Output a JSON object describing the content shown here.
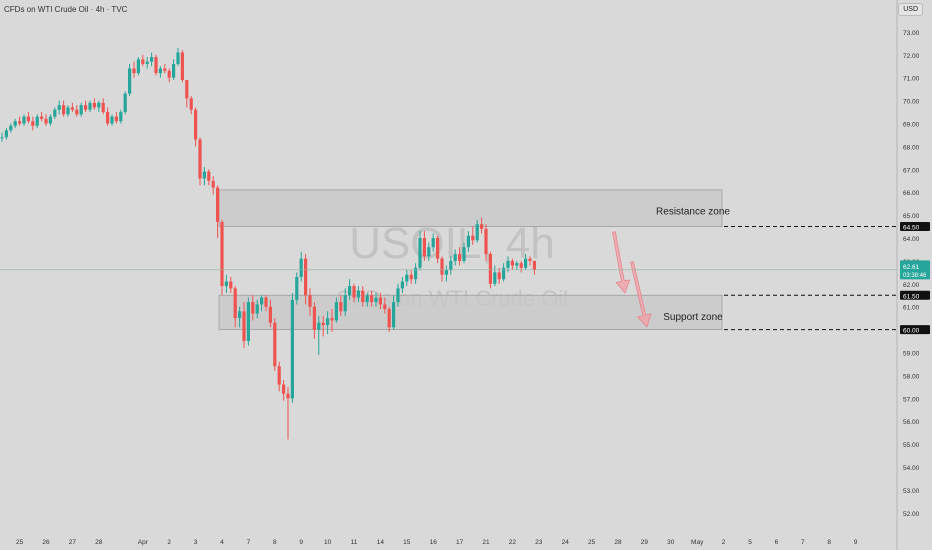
{
  "header": {
    "symbol_line": "CFDs on WTI Crude Oil · 4h · TVC"
  },
  "currency_button": "USD",
  "watermark": {
    "line1": "USOIL, 4h",
    "line2": "CFDs on WTI Crude Oil"
  },
  "colors": {
    "up": "#26a69a",
    "down": "#ef5350",
    "zone": "#c7c7c7",
    "arrow": "#f0a0a6"
  },
  "chart_data": {
    "type": "candlestick",
    "title": "CFDs on WTI Crude Oil · 4h · TVC",
    "ylim": [
      51.6,
      73.3
    ],
    "y_ticks": [
      "73.00",
      "72.00",
      "71.00",
      "70.00",
      "69.00",
      "68.00",
      "67.00",
      "66.00",
      "65.00",
      "64.00",
      "63.00",
      "62.00",
      "61.00",
      "60.00",
      "59.00",
      "58.00",
      "57.00",
      "56.00",
      "55.00",
      "54.00",
      "53.00",
      "52.00"
    ],
    "x_ticks": [
      {
        "label": "25",
        "i": 4
      },
      {
        "label": "26",
        "i": 10
      },
      {
        "label": "27",
        "i": 16
      },
      {
        "label": "28",
        "i": 22
      },
      {
        "label": "Apr",
        "i": 32
      },
      {
        "label": "2",
        "i": 38
      },
      {
        "label": "3",
        "i": 44
      },
      {
        "label": "4",
        "i": 50
      },
      {
        "label": "7",
        "i": 56
      },
      {
        "label": "8",
        "i": 62
      },
      {
        "label": "9",
        "i": 68
      },
      {
        "label": "10",
        "i": 74
      },
      {
        "label": "11",
        "i": 80
      },
      {
        "label": "14",
        "i": 86
      },
      {
        "label": "15",
        "i": 92
      },
      {
        "label": "16",
        "i": 98
      },
      {
        "label": "17",
        "i": 104
      },
      {
        "label": "21",
        "i": 110
      },
      {
        "label": "22",
        "i": 116
      },
      {
        "label": "23",
        "i": 122
      },
      {
        "label": "24",
        "i": 128
      },
      {
        "label": "25",
        "i": 134
      },
      {
        "label": "28",
        "i": 140
      },
      {
        "label": "29",
        "i": 146
      },
      {
        "label": "30",
        "i": 152
      },
      {
        "label": "May",
        "i": 158
      },
      {
        "label": "2",
        "i": 164
      },
      {
        "label": "5",
        "i": 170
      },
      {
        "label": "6",
        "i": 176
      },
      {
        "label": "7",
        "i": 182
      },
      {
        "label": "8",
        "i": 188
      },
      {
        "label": "9",
        "i": 194
      }
    ],
    "candles": [
      [
        68.4,
        68.6,
        68.2,
        68.4
      ],
      [
        68.4,
        68.8,
        68.3,
        68.7
      ],
      [
        68.7,
        69.0,
        68.6,
        68.9
      ],
      [
        68.9,
        69.2,
        68.8,
        69.1
      ],
      [
        69.1,
        69.3,
        68.9,
        69.0
      ],
      [
        69.0,
        69.4,
        68.9,
        69.3
      ],
      [
        69.3,
        69.5,
        69.0,
        69.1
      ],
      [
        69.1,
        69.3,
        68.7,
        68.9
      ],
      [
        68.9,
        69.4,
        68.8,
        69.3
      ],
      [
        69.3,
        69.5,
        69.1,
        69.2
      ],
      [
        69.2,
        69.4,
        68.9,
        69.0
      ],
      [
        69.0,
        69.4,
        68.9,
        69.3
      ],
      [
        69.3,
        69.7,
        69.2,
        69.6
      ],
      [
        69.6,
        70.0,
        69.4,
        69.8
      ],
      [
        69.8,
        70.0,
        69.3,
        69.4
      ],
      [
        69.4,
        69.8,
        69.3,
        69.7
      ],
      [
        69.7,
        69.9,
        69.5,
        69.6
      ],
      [
        69.6,
        69.8,
        69.3,
        69.4
      ],
      [
        69.4,
        69.9,
        69.3,
        69.8
      ],
      [
        69.8,
        70.0,
        69.5,
        69.6
      ],
      [
        69.6,
        70.0,
        69.5,
        69.9
      ],
      [
        69.9,
        70.1,
        69.6,
        69.7
      ],
      [
        69.7,
        70.0,
        69.5,
        69.9
      ],
      [
        69.9,
        70.1,
        69.4,
        69.5
      ],
      [
        69.5,
        69.7,
        68.9,
        69.0
      ],
      [
        69.0,
        69.4,
        68.9,
        69.3
      ],
      [
        69.3,
        69.5,
        69.0,
        69.1
      ],
      [
        69.1,
        69.6,
        69.0,
        69.5
      ],
      [
        69.5,
        70.4,
        69.4,
        70.3
      ],
      [
        70.3,
        71.6,
        70.2,
        71.4
      ],
      [
        71.4,
        71.7,
        71.0,
        71.2
      ],
      [
        71.2,
        71.9,
        71.1,
        71.8
      ],
      [
        71.8,
        72.0,
        71.5,
        71.6
      ],
      [
        71.6,
        71.9,
        71.4,
        71.7
      ],
      [
        71.7,
        72.1,
        71.5,
        71.9
      ],
      [
        71.9,
        72.0,
        71.1,
        71.2
      ],
      [
        71.2,
        71.5,
        71.0,
        71.4
      ],
      [
        71.4,
        71.6,
        71.2,
        71.3
      ],
      [
        71.3,
        71.4,
        70.8,
        71.0
      ],
      [
        71.0,
        71.8,
        70.9,
        71.6
      ],
      [
        71.6,
        72.3,
        71.5,
        72.1
      ],
      [
        72.1,
        72.2,
        70.8,
        70.9
      ],
      [
        70.9,
        70.9,
        69.7,
        70.1
      ],
      [
        70.1,
        70.2,
        69.4,
        69.6
      ],
      [
        69.6,
        69.7,
        68.0,
        68.3
      ],
      [
        68.3,
        68.4,
        66.3,
        66.6
      ],
      [
        66.6,
        67.1,
        66.3,
        66.9
      ],
      [
        66.9,
        67.0,
        66.3,
        66.5
      ],
      [
        66.5,
        66.7,
        65.9,
        66.2
      ],
      [
        66.2,
        66.3,
        64.0,
        64.7
      ],
      [
        64.7,
        64.8,
        61.5,
        61.9
      ],
      [
        61.9,
        62.4,
        61.6,
        62.1
      ],
      [
        62.1,
        62.3,
        61.6,
        61.8
      ],
      [
        61.8,
        61.9,
        60.1,
        60.5
      ],
      [
        60.5,
        61.0,
        60.1,
        60.8
      ],
      [
        60.8,
        61.2,
        59.2,
        59.5
      ],
      [
        59.5,
        61.4,
        59.3,
        61.2
      ],
      [
        61.2,
        61.5,
        60.4,
        60.7
      ],
      [
        60.7,
        61.3,
        60.5,
        61.1
      ],
      [
        61.1,
        61.5,
        60.8,
        61.4
      ],
      [
        61.4,
        61.5,
        60.8,
        61.0
      ],
      [
        61.0,
        61.3,
        60.1,
        60.3
      ],
      [
        60.3,
        60.5,
        58.2,
        58.4
      ],
      [
        58.4,
        58.6,
        57.3,
        57.6
      ],
      [
        57.6,
        57.8,
        56.9,
        57.2
      ],
      [
        57.2,
        57.5,
        55.2,
        57.0
      ],
      [
        57.0,
        61.6,
        56.8,
        61.3
      ],
      [
        61.3,
        62.5,
        61.1,
        62.3
      ],
      [
        62.3,
        63.4,
        62.1,
        63.1
      ],
      [
        63.1,
        63.3,
        61.1,
        61.5
      ],
      [
        61.5,
        61.8,
        60.6,
        61.0
      ],
      [
        61.0,
        61.2,
        59.6,
        60.0
      ],
      [
        60.0,
        60.6,
        58.9,
        60.3
      ],
      [
        60.3,
        60.6,
        59.7,
        60.2
      ],
      [
        60.2,
        60.8,
        59.8,
        60.5
      ],
      [
        60.5,
        60.9,
        59.9,
        60.4
      ],
      [
        60.4,
        61.4,
        60.3,
        61.2
      ],
      [
        61.2,
        61.5,
        60.6,
        60.8
      ],
      [
        60.8,
        61.8,
        60.6,
        61.5
      ],
      [
        61.5,
        62.2,
        61.3,
        61.9
      ],
      [
        61.9,
        62.0,
        61.2,
        61.4
      ],
      [
        61.4,
        61.9,
        61.2,
        61.7
      ],
      [
        61.7,
        61.9,
        61.0,
        61.2
      ],
      [
        61.2,
        61.6,
        61.0,
        61.5
      ],
      [
        61.5,
        61.7,
        61.0,
        61.2
      ],
      [
        61.2,
        61.6,
        61.0,
        61.4
      ],
      [
        61.4,
        61.6,
        60.9,
        61.1
      ],
      [
        61.1,
        61.4,
        60.7,
        60.9
      ],
      [
        60.9,
        61.0,
        59.9,
        60.1
      ],
      [
        60.1,
        61.5,
        60.0,
        61.2
      ],
      [
        61.2,
        62.0,
        61.0,
        61.8
      ],
      [
        61.8,
        62.3,
        61.6,
        62.1
      ],
      [
        62.1,
        62.6,
        61.9,
        62.4
      ],
      [
        62.4,
        62.6,
        62.0,
        62.2
      ],
      [
        62.2,
        62.9,
        62.0,
        62.7
      ],
      [
        62.7,
        64.3,
        62.6,
        64.0
      ],
      [
        64.0,
        64.3,
        63.0,
        63.2
      ],
      [
        63.2,
        63.8,
        63.0,
        63.6
      ],
      [
        63.6,
        64.2,
        63.4,
        64.0
      ],
      [
        64.0,
        64.1,
        62.9,
        63.1
      ],
      [
        63.1,
        63.2,
        62.1,
        62.4
      ],
      [
        62.4,
        62.8,
        62.1,
        62.6
      ],
      [
        62.6,
        63.2,
        62.4,
        63.0
      ],
      [
        63.0,
        63.5,
        62.8,
        63.3
      ],
      [
        63.3,
        63.6,
        62.8,
        63.0
      ],
      [
        63.0,
        63.8,
        62.9,
        63.6
      ],
      [
        63.6,
        64.3,
        63.4,
        64.1
      ],
      [
        64.1,
        64.5,
        63.7,
        63.9
      ],
      [
        63.9,
        64.8,
        63.8,
        64.6
      ],
      [
        64.6,
        64.9,
        64.2,
        64.4
      ],
      [
        64.4,
        64.6,
        63.0,
        63.3
      ],
      [
        63.3,
        63.4,
        61.8,
        62.0
      ],
      [
        62.0,
        62.8,
        61.9,
        62.5
      ],
      [
        62.5,
        62.7,
        62.0,
        62.2
      ],
      [
        62.2,
        62.9,
        62.1,
        62.7
      ],
      [
        62.7,
        63.2,
        62.5,
        63.0
      ],
      [
        63.0,
        63.1,
        62.6,
        62.8
      ],
      [
        62.8,
        63.0,
        62.6,
        62.9
      ],
      [
        62.9,
        63.0,
        62.5,
        62.7
      ],
      [
        62.7,
        63.3,
        62.6,
        63.1
      ],
      [
        63.1,
        63.2,
        62.8,
        63.0
      ],
      [
        63.0,
        63.0,
        62.4,
        62.61
      ]
    ],
    "last_close": 62.61,
    "countdown": "03:38:46",
    "zones": [
      {
        "name": "Resistance zone",
        "top": 66.1,
        "bottom": 64.5,
        "label_y": 65.2
      },
      {
        "name": "Support zone",
        "top": 61.5,
        "bottom": 60.0,
        "label_y": 60.6
      }
    ],
    "levels": [
      "64.50",
      "61.50",
      "60.00"
    ],
    "last_price_label": "62.61"
  }
}
